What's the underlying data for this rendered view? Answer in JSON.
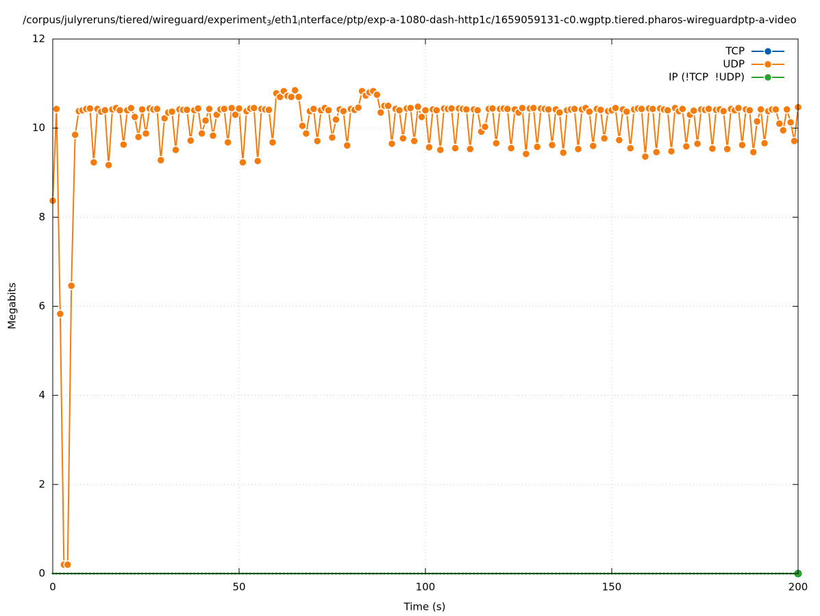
{
  "chart_data": {
    "type": "line",
    "title_parts": [
      "/corpus/julyreruns/tiered/wireguard/experiment",
      "3",
      "/eth1",
      "i",
      "nterface/ptp/exp-a-1080-dash-http1c/1659059131-c0.wgptp.tiered.pharos-wireguardptp-a-video"
    ],
    "x_label": "Time (s)",
    "y_label": "Megabits",
    "xlim": [
      0,
      200
    ],
    "xticks": [
      0,
      50,
      100,
      150,
      200
    ],
    "ylim": [
      0,
      12
    ],
    "yticks": [
      0,
      2,
      4,
      6,
      8,
      10,
      12
    ],
    "grid": true,
    "legend": "top-right",
    "x": [
      0,
      1,
      2,
      3,
      4,
      5,
      6,
      7,
      8,
      9,
      10,
      11,
      12,
      13,
      14,
      15,
      16,
      17,
      18,
      19,
      20,
      21,
      22,
      23,
      24,
      25,
      26,
      27,
      28,
      29,
      30,
      31,
      32,
      33,
      34,
      35,
      36,
      37,
      38,
      39,
      40,
      41,
      42,
      43,
      44,
      45,
      46,
      47,
      48,
      49,
      50,
      51,
      52,
      53,
      54,
      55,
      56,
      57,
      58,
      59,
      60,
      61,
      62,
      63,
      64,
      65,
      66,
      67,
      68,
      69,
      70,
      71,
      72,
      73,
      74,
      75,
      76,
      77,
      78,
      79,
      80,
      81,
      82,
      83,
      84,
      85,
      86,
      87,
      88,
      89,
      90,
      91,
      92,
      93,
      94,
      95,
      96,
      97,
      98,
      99,
      100,
      101,
      102,
      103,
      104,
      105,
      106,
      107,
      108,
      109,
      110,
      111,
      112,
      113,
      114,
      115,
      116,
      117,
      118,
      119,
      120,
      121,
      122,
      123,
      124,
      125,
      126,
      127,
      128,
      129,
      130,
      131,
      132,
      133,
      134,
      135,
      136,
      137,
      138,
      139,
      140,
      141,
      142,
      143,
      144,
      145,
      146,
      147,
      148,
      149,
      150,
      151,
      152,
      153,
      154,
      155,
      156,
      157,
      158,
      159,
      160,
      161,
      162,
      163,
      164,
      165,
      166,
      167,
      168,
      169,
      170,
      171,
      172,
      173,
      174,
      175,
      176,
      177,
      178,
      179,
      180,
      181,
      182,
      183,
      184,
      185,
      186,
      187,
      188,
      189,
      190,
      191,
      192,
      193,
      194,
      195,
      196,
      197,
      198,
      199,
      200
    ],
    "series": [
      {
        "name": "TCP",
        "color": "#0060ad",
        "values": [
          0,
          0,
          0,
          0,
          0,
          0,
          0,
          0,
          0,
          0,
          0,
          0,
          0,
          0,
          0,
          0,
          0,
          0,
          0,
          0,
          0,
          0,
          0,
          0,
          0,
          0,
          0,
          0,
          0,
          0,
          0,
          0,
          0,
          0,
          0,
          0,
          0,
          0,
          0,
          0,
          0,
          0,
          0,
          0,
          0,
          0,
          0,
          0,
          0,
          0,
          0,
          0,
          0,
          0,
          0,
          0,
          0,
          0,
          0,
          0,
          0,
          0,
          0,
          0,
          0,
          0,
          0,
          0,
          0,
          0,
          0,
          0,
          0,
          0,
          0,
          0,
          0,
          0,
          0,
          0,
          0,
          0,
          0,
          0,
          0,
          0,
          0,
          0,
          0,
          0,
          0,
          0,
          0,
          0,
          0,
          0,
          0,
          0,
          0,
          0,
          0,
          0,
          0,
          0,
          0,
          0,
          0,
          0,
          0,
          0,
          0,
          0,
          0,
          0,
          0,
          0,
          0,
          0,
          0,
          0,
          0,
          0,
          0,
          0,
          0,
          0,
          0,
          0,
          0,
          0,
          0,
          0,
          0,
          0,
          0,
          0,
          0,
          0,
          0,
          0,
          0,
          0,
          0,
          0,
          0,
          0,
          0,
          0,
          0,
          0,
          0,
          0,
          0,
          0,
          0,
          0,
          0,
          0,
          0,
          0,
          0,
          0,
          0,
          0,
          0,
          0,
          0,
          0,
          0,
          0,
          0,
          0,
          0,
          0,
          0,
          0,
          0,
          0,
          0,
          0,
          0,
          0,
          0,
          0,
          0,
          0,
          0,
          0,
          0,
          0,
          0,
          0,
          0,
          0,
          0,
          0,
          0,
          0,
          0,
          0,
          0
        ]
      },
      {
        "name": "UDP",
        "color": "#f47c0e",
        "values": [
          8.37,
          10.43,
          5.83,
          0.2,
          0.2,
          6.46,
          9.85,
          10.38,
          10.4,
          10.43,
          10.44,
          9.23,
          10.43,
          10.37,
          10.4,
          9.17,
          10.42,
          10.45,
          10.4,
          9.63,
          10.4,
          10.45,
          10.25,
          9.8,
          10.42,
          9.88,
          10.44,
          10.42,
          10.43,
          9.28,
          10.22,
          10.35,
          10.37,
          9.51,
          10.42,
          10.41,
          10.41,
          9.72,
          10.4,
          10.44,
          9.88,
          10.17,
          10.43,
          9.83,
          10.3,
          10.42,
          10.43,
          9.68,
          10.45,
          10.3,
          10.44,
          9.23,
          10.38,
          10.44,
          10.45,
          9.26,
          10.43,
          10.42,
          10.41,
          9.68,
          10.78,
          10.7,
          10.83,
          10.72,
          10.7,
          10.85,
          10.7,
          10.05,
          9.88,
          10.38,
          10.43,
          9.71,
          10.4,
          10.45,
          10.4,
          9.79,
          10.19,
          10.42,
          10.38,
          9.61,
          10.43,
          10.41,
          10.46,
          10.83,
          10.73,
          10.8,
          10.83,
          10.75,
          10.35,
          10.5,
          10.5,
          9.65,
          10.43,
          10.4,
          9.77,
          10.44,
          10.45,
          9.71,
          10.48,
          10.25,
          10.4,
          9.57,
          10.42,
          10.4,
          9.51,
          10.44,
          10.43,
          10.44,
          9.55,
          10.44,
          10.43,
          10.42,
          9.53,
          10.42,
          10.4,
          9.92,
          10.03,
          10.43,
          10.44,
          9.66,
          10.43,
          10.44,
          10.43,
          9.55,
          10.42,
          10.35,
          10.45,
          9.42,
          10.44,
          10.45,
          9.58,
          10.44,
          10.43,
          10.42,
          9.62,
          10.42,
          10.35,
          9.45,
          10.4,
          10.42,
          10.43,
          9.53,
          10.42,
          10.45,
          10.37,
          9.6,
          10.43,
          10.41,
          9.77,
          10.38,
          10.4,
          10.45,
          9.73,
          10.42,
          10.37,
          9.55,
          10.42,
          10.44,
          10.43,
          9.36,
          10.44,
          10.43,
          9.46,
          10.44,
          10.42,
          10.4,
          9.48,
          10.45,
          10.38,
          10.43,
          9.59,
          10.3,
          10.39,
          9.65,
          10.42,
          10.41,
          10.43,
          9.54,
          10.41,
          10.42,
          10.38,
          9.53,
          10.43,
          10.4,
          10.45,
          9.62,
          10.42,
          10.4,
          9.46,
          10.15,
          10.42,
          9.66,
          10.38,
          10.42,
          10.42,
          10.1,
          9.95,
          10.42,
          10.13,
          9.71,
          10.47
        ]
      },
      {
        "name": "IP (!TCP  !UDP)",
        "color": "#2ca02c",
        "values": [
          0,
          0,
          0,
          0,
          0,
          0,
          0,
          0,
          0,
          0,
          0,
          0,
          0,
          0,
          0,
          0,
          0,
          0,
          0,
          0,
          0,
          0,
          0,
          0,
          0,
          0,
          0,
          0,
          0,
          0,
          0,
          0,
          0,
          0,
          0,
          0,
          0,
          0,
          0,
          0,
          0,
          0,
          0,
          0,
          0,
          0,
          0,
          0,
          0,
          0,
          0,
          0,
          0,
          0,
          0,
          0,
          0,
          0,
          0,
          0,
          0,
          0,
          0,
          0,
          0,
          0,
          0,
          0,
          0,
          0,
          0,
          0,
          0,
          0,
          0,
          0,
          0,
          0,
          0,
          0,
          0,
          0,
          0,
          0,
          0,
          0,
          0,
          0,
          0,
          0,
          0,
          0,
          0,
          0,
          0,
          0,
          0,
          0,
          0,
          0,
          0,
          0,
          0,
          0,
          0,
          0,
          0,
          0,
          0,
          0,
          0,
          0,
          0,
          0,
          0,
          0,
          0,
          0,
          0,
          0,
          0,
          0,
          0,
          0,
          0,
          0,
          0,
          0,
          0,
          0,
          0,
          0,
          0,
          0,
          0,
          0,
          0,
          0,
          0,
          0,
          0,
          0,
          0,
          0,
          0,
          0,
          0,
          0,
          0,
          0,
          0,
          0,
          0,
          0,
          0,
          0,
          0,
          0,
          0,
          0,
          0,
          0,
          0,
          0,
          0,
          0,
          0,
          0,
          0,
          0,
          0,
          0,
          0,
          0,
          0,
          0,
          0,
          0,
          0,
          0,
          0,
          0,
          0,
          0,
          0,
          0,
          0,
          0,
          0,
          0,
          0,
          0,
          0,
          0,
          0,
          0,
          0,
          0,
          0,
          0,
          0
        ]
      }
    ]
  }
}
